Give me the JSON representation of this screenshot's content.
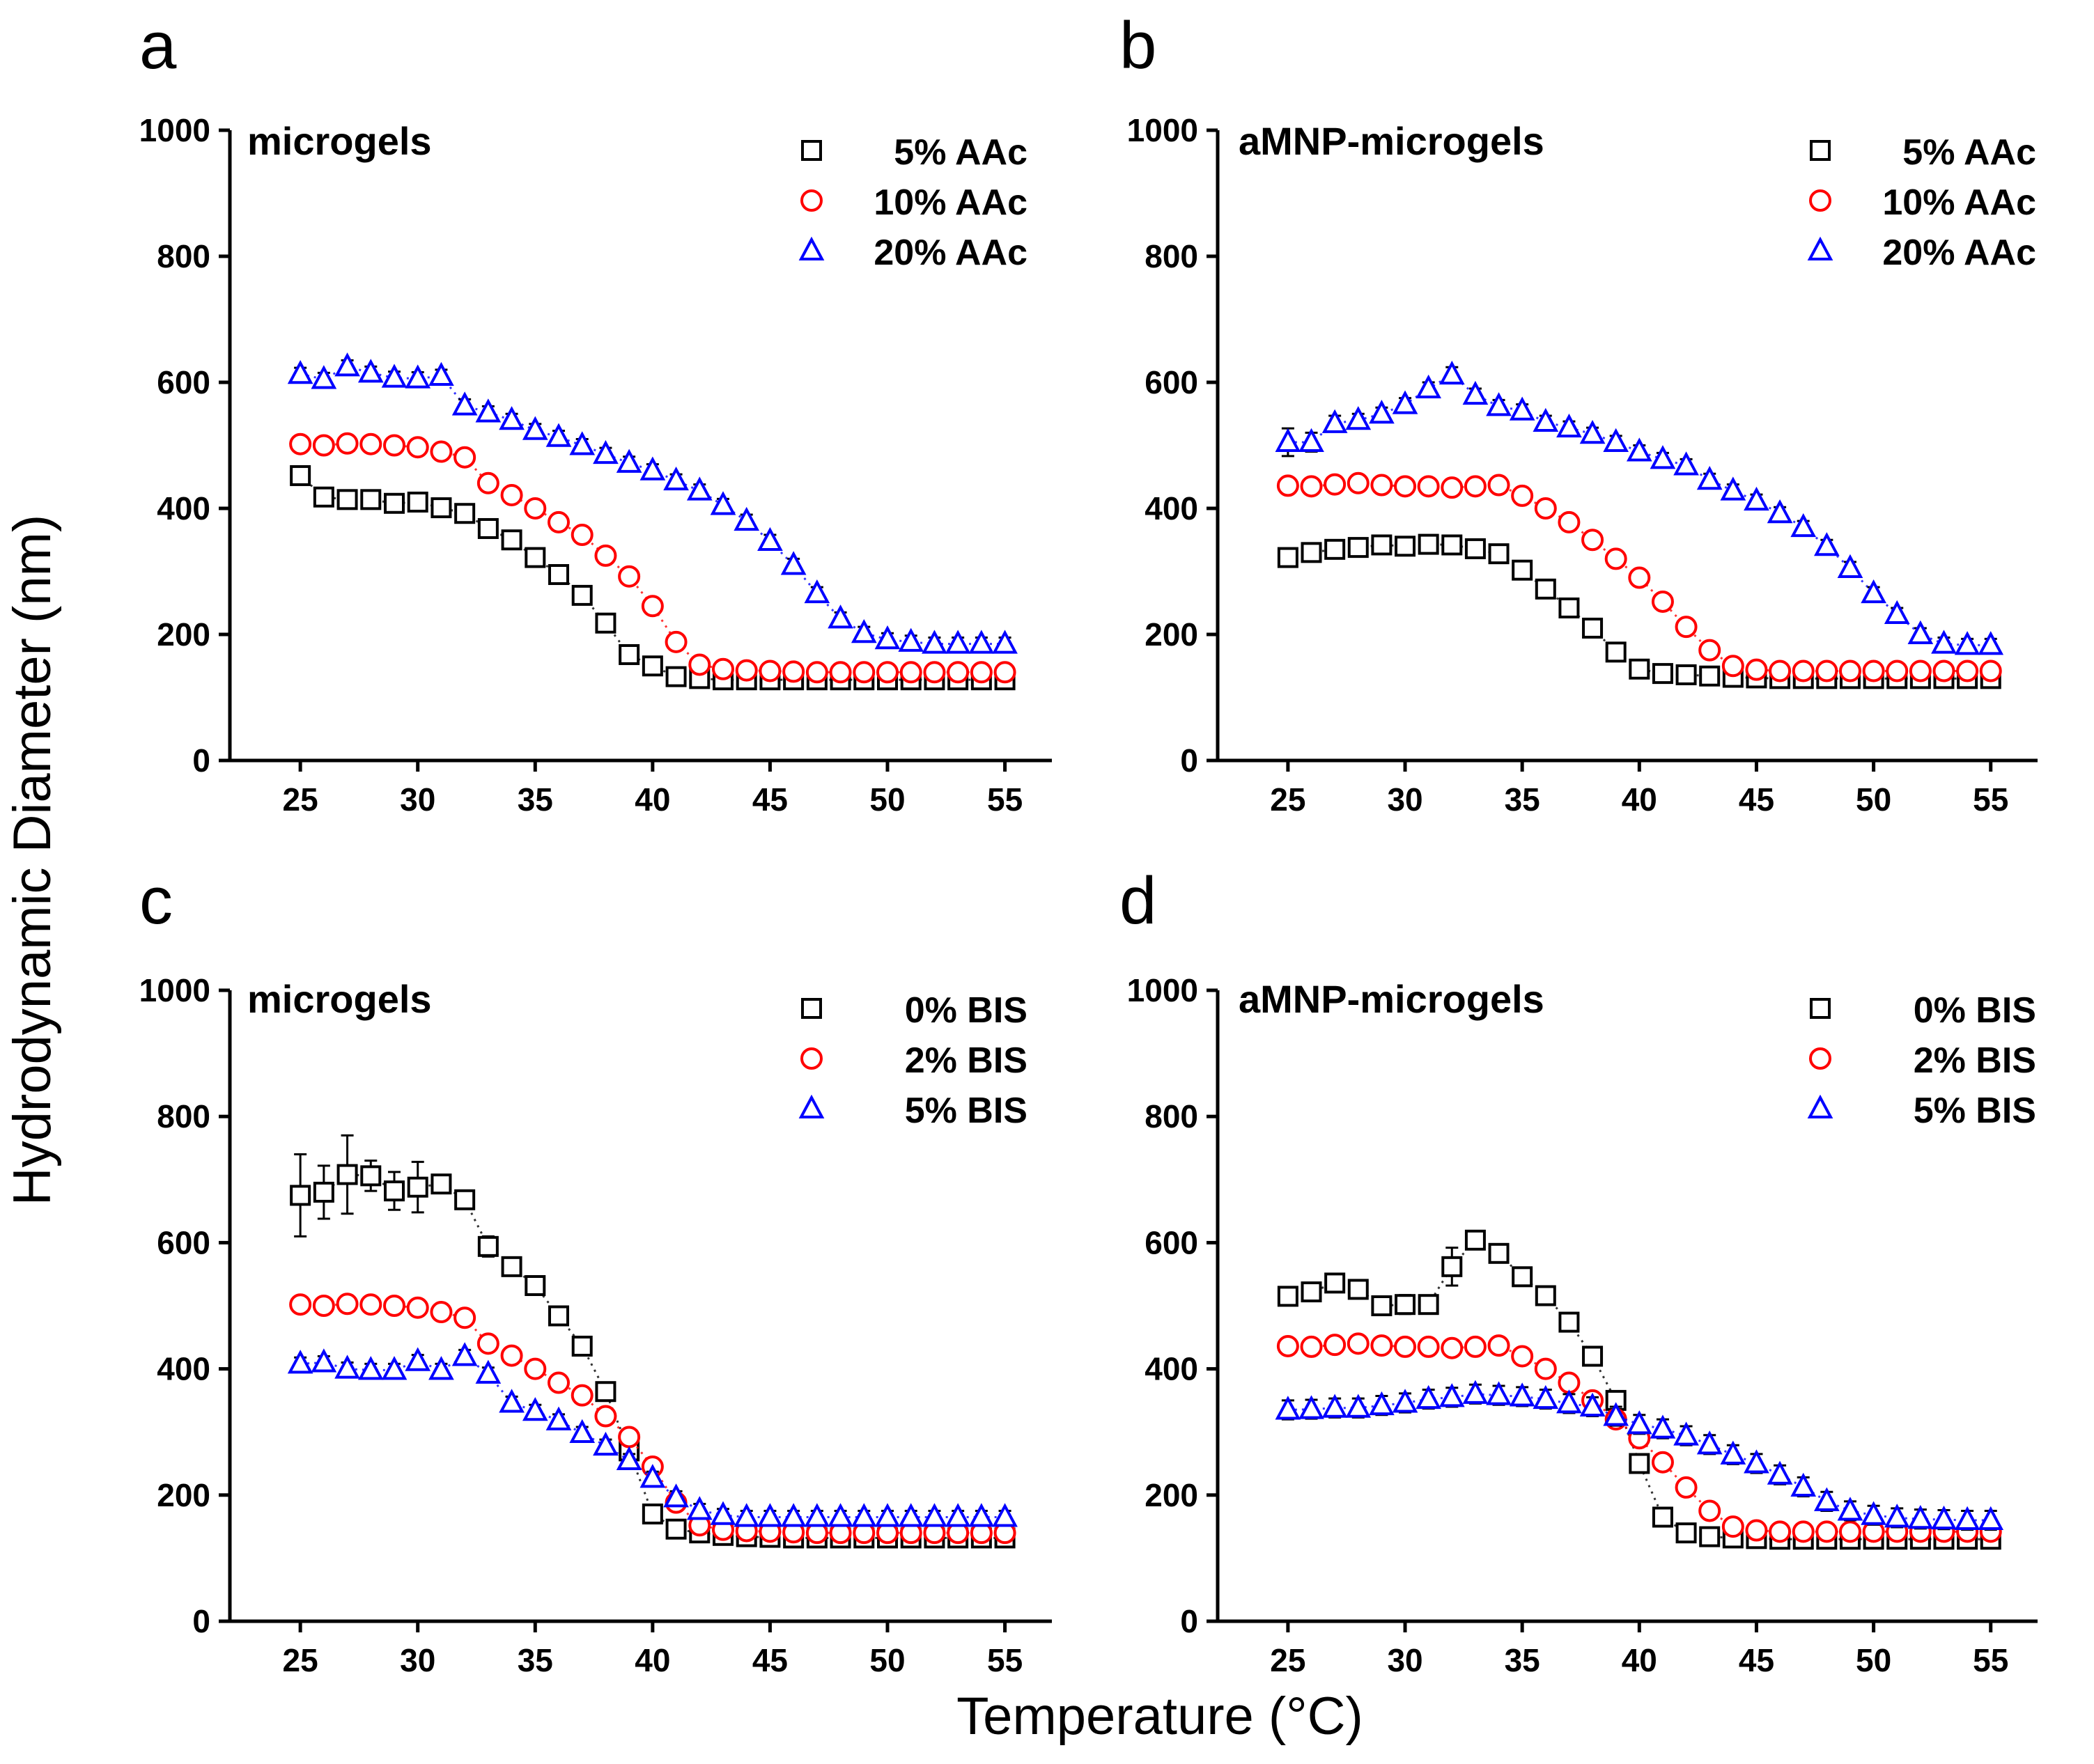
{
  "figure": {
    "xlabel": "Temperature (°C)",
    "ylabel": "Hydrodynamic Diameter (nm)"
  },
  "chart_data": [
    {
      "panel": "a",
      "type": "scatter",
      "title": "microgels",
      "xlabel": "Temperature (°C)",
      "ylabel": "Hydrodynamic Diameter (nm)",
      "xlim": [
        22,
        57
      ],
      "ylim": [
        0,
        1000
      ],
      "xticks": [
        "25",
        "30",
        "35",
        "40",
        "45",
        "50",
        "55"
      ],
      "yticks": [
        "0",
        "200",
        "400",
        "600",
        "800",
        "1000"
      ],
      "legend_position": "top-right",
      "x": [
        25,
        26,
        27,
        28,
        29,
        30,
        31,
        32,
        33,
        34,
        35,
        36,
        37,
        38,
        39,
        40,
        41,
        42,
        43,
        44,
        45,
        46,
        47,
        48,
        49,
        50,
        51,
        52,
        53,
        54,
        55
      ],
      "series": [
        {
          "name": "5% AAc",
          "marker": "square",
          "color": "#000000",
          "values": [
            452,
            418,
            414,
            414,
            408,
            410,
            401,
            392,
            368,
            350,
            322,
            295,
            262,
            218,
            168,
            150,
            133,
            130,
            128,
            128,
            128,
            128,
            128,
            128,
            128,
            128,
            128,
            128,
            128,
            128,
            128
          ],
          "errors": [
            8,
            8,
            8,
            8,
            8,
            8,
            8,
            8,
            8,
            8,
            8,
            8,
            8,
            8,
            8,
            8,
            6,
            6,
            6,
            6,
            6,
            6,
            6,
            6,
            6,
            6,
            6,
            6,
            6,
            6,
            6
          ]
        },
        {
          "name": "10% AAc",
          "marker": "circle",
          "color": "#ff0000",
          "values": [
            502,
            500,
            503,
            502,
            500,
            497,
            490,
            481,
            440,
            421,
            400,
            378,
            358,
            325,
            292,
            245,
            188,
            152,
            145,
            143,
            142,
            141,
            140,
            140,
            140,
            140,
            140,
            140,
            140,
            140,
            140
          ],
          "errors": [
            5,
            5,
            5,
            5,
            5,
            5,
            5,
            5,
            5,
            5,
            5,
            5,
            5,
            5,
            5,
            5,
            5,
            5,
            5,
            5,
            5,
            5,
            5,
            5,
            5,
            5,
            5,
            5,
            5,
            5,
            5
          ]
        },
        {
          "name": "20% AAc",
          "marker": "triangle",
          "color": "#0000ff",
          "values": [
            613,
            605,
            625,
            615,
            607,
            606,
            610,
            563,
            552,
            540,
            524,
            513,
            500,
            486,
            472,
            460,
            444,
            428,
            405,
            380,
            348,
            310,
            265,
            225,
            202,
            192,
            188,
            185,
            185,
            185,
            185
          ],
          "errors": [
            10,
            10,
            10,
            10,
            10,
            10,
            10,
            10,
            10,
            10,
            10,
            10,
            10,
            10,
            10,
            10,
            10,
            10,
            10,
            10,
            10,
            10,
            10,
            10,
            10,
            10,
            10,
            10,
            10,
            10,
            10
          ]
        }
      ]
    },
    {
      "panel": "b",
      "type": "scatter",
      "title": "aMNP-microgels",
      "xlabel": "Temperature (°C)",
      "ylabel": "Hydrodynamic Diameter (nm)",
      "xlim": [
        22,
        57
      ],
      "ylim": [
        0,
        1000
      ],
      "xticks": [
        "25",
        "30",
        "35",
        "40",
        "45",
        "50",
        "55"
      ],
      "yticks": [
        "0",
        "200",
        "400",
        "600",
        "800",
        "1000"
      ],
      "legend_position": "top-right",
      "x": [
        25,
        26,
        27,
        28,
        29,
        30,
        31,
        32,
        33,
        34,
        35,
        36,
        37,
        38,
        39,
        40,
        41,
        42,
        43,
        44,
        45,
        46,
        47,
        48,
        49,
        50,
        51,
        52,
        53,
        54,
        55
      ],
      "series": [
        {
          "name": "5% AAc",
          "marker": "square",
          "color": "#000000",
          "values": [
            322,
            330,
            335,
            338,
            342,
            340,
            343,
            342,
            336,
            328,
            302,
            272,
            242,
            210,
            172,
            145,
            138,
            136,
            134,
            132,
            131,
            130,
            130,
            130,
            130,
            130,
            130,
            130,
            130,
            130,
            130
          ],
          "errors": [
            8,
            8,
            8,
            8,
            8,
            8,
            8,
            8,
            8,
            8,
            8,
            8,
            8,
            8,
            8,
            8,
            6,
            6,
            6,
            6,
            6,
            6,
            6,
            6,
            6,
            6,
            6,
            6,
            6,
            6,
            6
          ]
        },
        {
          "name": "10% AAc",
          "marker": "circle",
          "color": "#ff0000",
          "values": [
            436,
            435,
            438,
            440,
            437,
            435,
            435,
            433,
            435,
            437,
            420,
            400,
            378,
            350,
            320,
            290,
            252,
            212,
            175,
            150,
            144,
            142,
            142,
            142,
            142,
            142,
            142,
            142,
            142,
            142,
            142
          ],
          "errors": [
            5,
            5,
            5,
            5,
            5,
            5,
            5,
            5,
            5,
            5,
            5,
            5,
            5,
            5,
            5,
            5,
            5,
            5,
            5,
            5,
            5,
            5,
            5,
            5,
            5,
            5,
            5,
            5,
            5,
            5,
            5
          ]
        },
        {
          "name": "20% AAc",
          "marker": "triangle",
          "color": "#0000ff",
          "values": [
            505,
            505,
            535,
            540,
            550,
            565,
            590,
            612,
            580,
            562,
            555,
            537,
            528,
            518,
            505,
            490,
            478,
            468,
            445,
            428,
            412,
            392,
            370,
            340,
            305,
            265,
            232,
            200,
            185,
            183,
            183
          ],
          "errors": [
            22,
            15,
            12,
            10,
            10,
            10,
            10,
            12,
            10,
            10,
            10,
            10,
            10,
            10,
            10,
            10,
            10,
            10,
            10,
            10,
            10,
            10,
            10,
            10,
            10,
            10,
            10,
            10,
            10,
            10,
            10
          ]
        }
      ]
    },
    {
      "panel": "c",
      "type": "scatter",
      "title": "microgels",
      "xlabel": "Temperature (°C)",
      "ylabel": "Hydrodynamic Diameter (nm)",
      "xlim": [
        22,
        57
      ],
      "ylim": [
        0,
        1000
      ],
      "xticks": [
        "25",
        "30",
        "35",
        "40",
        "45",
        "50",
        "55"
      ],
      "yticks": [
        "0",
        "200",
        "400",
        "600",
        "800",
        "1000"
      ],
      "legend_position": "top-right",
      "x": [
        25,
        26,
        27,
        28,
        29,
        30,
        31,
        32,
        33,
        34,
        35,
        36,
        37,
        38,
        39,
        40,
        41,
        42,
        43,
        44,
        45,
        46,
        47,
        48,
        49,
        50,
        51,
        52,
        53,
        54,
        55
      ],
      "series": [
        {
          "name": "0% BIS",
          "marker": "square",
          "color": "#000000",
          "values": [
            675,
            680,
            708,
            706,
            682,
            688,
            693,
            668,
            594,
            562,
            532,
            484,
            436,
            364,
            270,
            170,
            146,
            140,
            136,
            134,
            133,
            132,
            132,
            132,
            132,
            132,
            132,
            132,
            132,
            132,
            132
          ],
          "errors": [
            65,
            42,
            62,
            24,
            30,
            40,
            12,
            12,
            16,
            10,
            10,
            10,
            10,
            12,
            12,
            10,
            8,
            6,
            6,
            6,
            6,
            6,
            6,
            6,
            6,
            6,
            6,
            6,
            6,
            6,
            6
          ]
        },
        {
          "name": "2% BIS",
          "marker": "circle",
          "color": "#ff0000",
          "values": [
            502,
            500,
            503,
            502,
            500,
            497,
            490,
            481,
            440,
            421,
            400,
            378,
            358,
            325,
            292,
            245,
            188,
            152,
            145,
            143,
            142,
            141,
            140,
            140,
            140,
            140,
            140,
            140,
            140,
            140,
            140
          ],
          "errors": [
            5,
            5,
            5,
            5,
            5,
            5,
            5,
            5,
            5,
            5,
            5,
            5,
            5,
            5,
            5,
            5,
            5,
            5,
            5,
            5,
            5,
            5,
            5,
            5,
            5,
            5,
            5,
            5,
            5,
            5,
            5
          ]
        },
        {
          "name": "5% BIS",
          "marker": "triangle",
          "color": "#0000ff",
          "values": [
            408,
            410,
            400,
            398,
            398,
            412,
            398,
            420,
            392,
            346,
            333,
            318,
            298,
            278,
            255,
            227,
            196,
            176,
            168,
            165,
            165,
            165,
            165,
            165,
            165,
            165,
            165,
            165,
            165,
            165,
            165
          ],
          "errors": [
            10,
            10,
            10,
            10,
            10,
            10,
            10,
            10,
            10,
            10,
            10,
            10,
            10,
            10,
            10,
            10,
            10,
            10,
            10,
            10,
            10,
            10,
            10,
            10,
            10,
            10,
            10,
            10,
            10,
            10,
            10
          ]
        }
      ]
    },
    {
      "panel": "d",
      "type": "scatter",
      "title": "aMNP-microgels",
      "xlabel": "Temperature (°C)",
      "ylabel": "Hydrodynamic Diameter (nm)",
      "xlim": [
        22,
        57
      ],
      "ylim": [
        0,
        1000
      ],
      "xticks": [
        "25",
        "30",
        "35",
        "40",
        "45",
        "50",
        "55"
      ],
      "yticks": [
        "0",
        "200",
        "400",
        "600",
        "800",
        "1000"
      ],
      "legend_position": "top-right",
      "x": [
        25,
        26,
        27,
        28,
        29,
        30,
        31,
        32,
        33,
        34,
        35,
        36,
        37,
        38,
        39,
        40,
        41,
        42,
        43,
        44,
        45,
        46,
        47,
        48,
        49,
        50,
        51,
        52,
        53,
        54,
        55
      ],
      "series": [
        {
          "name": "0% BIS",
          "marker": "square",
          "color": "#000000",
          "values": [
            515,
            522,
            536,
            526,
            500,
            502,
            502,
            562,
            604,
            583,
            546,
            516,
            474,
            420,
            350,
            250,
            165,
            140,
            134,
            132,
            131,
            130,
            130,
            130,
            130,
            130,
            130,
            130,
            130,
            130,
            130
          ],
          "errors": [
            10,
            10,
            10,
            10,
            10,
            15,
            10,
            30,
            10,
            12,
            10,
            10,
            10,
            10,
            10,
            10,
            8,
            6,
            6,
            6,
            6,
            6,
            6,
            6,
            6,
            6,
            6,
            6,
            6,
            6,
            6
          ]
        },
        {
          "name": "2% BIS",
          "marker": "circle",
          "color": "#ff0000",
          "values": [
            436,
            435,
            438,
            440,
            437,
            435,
            435,
            433,
            435,
            437,
            420,
            400,
            378,
            350,
            320,
            290,
            252,
            212,
            175,
            150,
            144,
            142,
            142,
            142,
            142,
            142,
            142,
            142,
            142,
            142,
            142
          ],
          "errors": [
            5,
            5,
            5,
            5,
            5,
            5,
            5,
            5,
            5,
            5,
            5,
            5,
            5,
            5,
            5,
            5,
            5,
            5,
            5,
            5,
            5,
            5,
            5,
            5,
            5,
            5,
            5,
            5,
            5,
            5,
            5
          ]
        },
        {
          "name": "5% BIS",
          "marker": "triangle",
          "color": "#0000ff",
          "values": [
            335,
            336,
            338,
            338,
            342,
            346,
            352,
            355,
            360,
            358,
            356,
            352,
            345,
            340,
            325,
            312,
            305,
            294,
            280,
            264,
            250,
            232,
            213,
            190,
            175,
            168,
            164,
            162,
            161,
            160,
            160
          ],
          "errors": [
            15,
            15,
            15,
            15,
            15,
            15,
            15,
            15,
            15,
            15,
            15,
            15,
            15,
            15,
            15,
            15,
            15,
            15,
            15,
            15,
            15,
            15,
            15,
            15,
            15,
            15,
            15,
            15,
            15,
            15,
            15
          ]
        }
      ]
    }
  ]
}
